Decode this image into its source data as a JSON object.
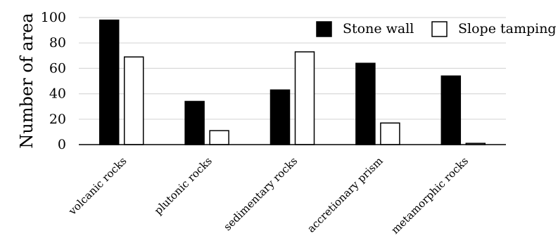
{
  "chart_data": {
    "type": "bar",
    "title": "",
    "xlabel": "",
    "ylabel": "Number of area",
    "ylim": [
      0,
      100
    ],
    "yticks": [
      0,
      20,
      40,
      60,
      80,
      100
    ],
    "grid": true,
    "legend_position": "top-right",
    "categories": [
      "volcanic rocks",
      "plutonic rocks",
      "sedimentary rocks",
      "accretionary prism",
      "metamorphic rocks"
    ],
    "series": [
      {
        "name": "Stone wall",
        "values": [
          98,
          34,
          43,
          64,
          54
        ],
        "color": "#000000"
      },
      {
        "name": "Slope tamping",
        "values": [
          69,
          11,
          73,
          17,
          1
        ],
        "color": "#ffffff"
      }
    ]
  }
}
